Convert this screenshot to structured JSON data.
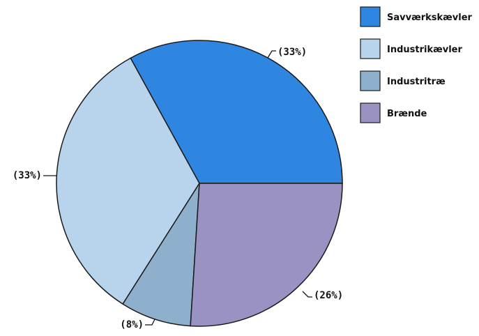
{
  "chart_data": {
    "type": "pie",
    "title": "",
    "categories": [
      "Savværkskævler",
      "Industrikævler",
      "Industritræ",
      "Brænde"
    ],
    "values": [
      33,
      33,
      8,
      26
    ],
    "labels": [
      "(33%)",
      "(33%)",
      "(8%)",
      "(26%)"
    ],
    "colors": [
      "#2f86e0",
      "#b7d4ec",
      "#8fb0cc",
      "#9b92c4"
    ],
    "legend_position": "top-right"
  }
}
